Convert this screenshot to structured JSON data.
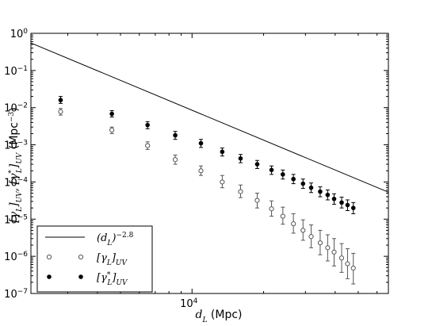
{
  "chart_data": {
    "type": "scatter",
    "title": "",
    "xlabel": "d_L (Mpc)",
    "ylabel": "[γ_L]_UV, [γ*_L]_UV (Mpc^-3)",
    "xscale": "log",
    "yscale": "log",
    "xlim": [
      2100,
      67000
    ],
    "ylim": [
      1e-07,
      1
    ],
    "grid": false,
    "legend_position": "lower-left",
    "x_ticks": [
      {
        "value": 10000,
        "label": "10^4"
      }
    ],
    "y_ticks": [
      {
        "value": 1,
        "label": "10^0"
      },
      {
        "value": 0.1,
        "label": "10^-1"
      },
      {
        "value": 0.01,
        "label": "10^-2"
      },
      {
        "value": 0.001,
        "label": "10^-3"
      },
      {
        "value": 0.0001,
        "label": "10^-4"
      },
      {
        "value": 1e-05,
        "label": "10^-5"
      },
      {
        "value": 1e-06,
        "label": "10^-6"
      },
      {
        "value": 1e-07,
        "label": "10^-7"
      }
    ],
    "series": [
      {
        "name": "(d_L)^-2.8",
        "kind": "line",
        "color": "#000000",
        "points": [
          [
            2100,
            0.55
          ],
          [
            67000,
            5.3e-05
          ]
        ]
      },
      {
        "name": "[γ_L]_UV",
        "kind": "open-circle",
        "color": "#555555",
        "x": [
          2800,
          4600,
          6500,
          8500,
          10900,
          13400,
          16000,
          18800,
          21600,
          24100,
          26700,
          29300,
          31700,
          34600,
          37200,
          39600,
          42600,
          45100,
          47700
        ],
        "y": [
          0.0078,
          0.0025,
          0.00095,
          0.0004,
          0.0002,
          0.0001,
          5.5e-05,
          3.2e-05,
          1.9e-05,
          1.2e-05,
          7.5e-06,
          5e-06,
          3.4e-06,
          2.3e-06,
          1.7e-06,
          1.3e-06,
          9e-07,
          6.3e-07,
          4.8e-07
        ],
        "y_err_low": [
          0.0063,
          0.002,
          0.00075,
          0.0003,
          0.00015,
          7e-05,
          3.8e-05,
          2e-05,
          1.2e-05,
          7.3e-06,
          4.2e-06,
          2.7e-06,
          1.7e-06,
          1.1e-06,
          7.5e-07,
          5.5e-07,
          3.7e-07,
          2.5e-07,
          1.8e-07
        ],
        "y_err_high": [
          0.0095,
          0.003,
          0.0012,
          0.00053,
          0.00027,
          0.00015,
          8.3e-05,
          5e-05,
          3.1e-05,
          2.1e-05,
          1.4e-05,
          9.6e-06,
          7e-06,
          5e-06,
          3.8e-06,
          3e-06,
          2.2e-06,
          1.6e-06,
          1.2e-06
        ]
      },
      {
        "name": "[γ*_L]_UV",
        "kind": "filled-circle",
        "color": "#000000",
        "x": [
          2800,
          4600,
          6500,
          8500,
          10900,
          13400,
          16000,
          18800,
          21600,
          24100,
          26700,
          29300,
          31700,
          34600,
          37200,
          39600,
          42600,
          45100,
          47700
        ],
        "y": [
          0.016,
          0.0068,
          0.0034,
          0.0018,
          0.0011,
          0.00065,
          0.00043,
          0.0003,
          0.00021,
          0.00016,
          0.00012,
          9e-05,
          7e-05,
          5.5e-05,
          4.5e-05,
          3.5e-05,
          2.8e-05,
          2.4e-05,
          2e-05
        ],
        "y_err_low": [
          0.013,
          0.0056,
          0.0027,
          0.0014,
          0.00085,
          0.0005,
          0.00033,
          0.00023,
          0.00016,
          0.00012,
          9e-05,
          6.7e-05,
          5.2e-05,
          4e-05,
          3.3e-05,
          2.5e-05,
          2e-05,
          1.7e-05,
          1.4e-05
        ],
        "y_err_high": [
          0.02,
          0.0083,
          0.0042,
          0.0023,
          0.0014,
          0.00082,
          0.00055,
          0.00038,
          0.00027,
          0.00021,
          0.00016,
          0.00012,
          9.4e-05,
          7.4e-05,
          6.1e-05,
          4.8e-05,
          3.9e-05,
          3.3e-05,
          2.8e-05
        ]
      }
    ]
  }
}
